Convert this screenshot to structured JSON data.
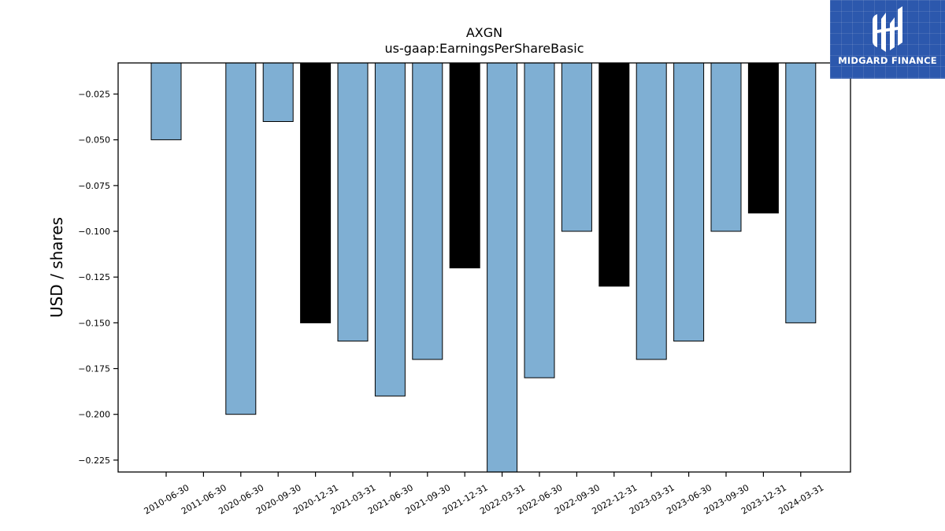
{
  "chart_data": {
    "type": "bar",
    "title": "AXGN",
    "subtitle": "us-gaap:EarningsPerShareBasic",
    "ylabel": "USD / shares",
    "xlabel": "",
    "ylim": [
      -0.2315,
      -0.008
    ],
    "yticks": [
      -0.025,
      -0.05,
      -0.075,
      -0.1,
      -0.125,
      -0.15,
      -0.175,
      -0.2,
      -0.225
    ],
    "ytick_labels": [
      "−0.025",
      "−0.050",
      "−0.075",
      "−0.100",
      "−0.125",
      "−0.150",
      "−0.175",
      "−0.200",
      "−0.225"
    ],
    "categories": [
      "2010-06-30",
      "2011-06-30",
      "2020-06-30",
      "2020-09-30",
      "2020-12-31",
      "2021-03-31",
      "2021-06-30",
      "2021-09-30",
      "2021-12-31",
      "2022-03-31",
      "2022-06-30",
      "2022-09-30",
      "2022-12-31",
      "2023-03-31",
      "2023-06-30",
      "2023-09-30",
      "2023-12-31",
      "2024-03-31"
    ],
    "values": [
      -0.05,
      null,
      -0.2,
      -0.04,
      -0.15,
      -0.16,
      -0.19,
      -0.17,
      -0.12,
      -0.24,
      -0.18,
      -0.1,
      -0.13,
      -0.17,
      -0.16,
      -0.1,
      -0.09,
      -0.15
    ],
    "bar_colors": [
      "#7fafd3",
      null,
      "#7fafd3",
      "#7fafd3",
      "#000000",
      "#7fafd3",
      "#7fafd3",
      "#7fafd3",
      "#000000",
      "#7fafd3",
      "#7fafd3",
      "#7fafd3",
      "#000000",
      "#7fafd3",
      "#7fafd3",
      "#7fafd3",
      "#000000",
      "#7fafd3"
    ],
    "grid": false
  },
  "logo": {
    "text": "MIDGARD FINANCE",
    "background": "#2c58ad"
  }
}
